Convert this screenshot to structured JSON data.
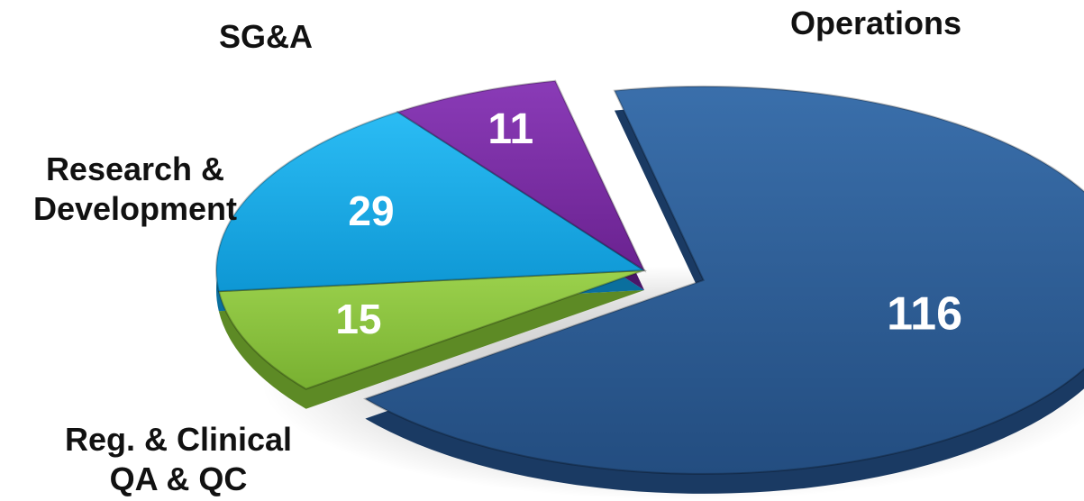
{
  "chart_data": {
    "type": "pie",
    "title": "",
    "categories": [
      "Operations",
      "Reg. & Clinical QA & QC",
      "Research & Development",
      "SG&A"
    ],
    "values": [
      116,
      15,
      29,
      11
    ],
    "slices": [
      {
        "label_lines": [
          "Operations"
        ],
        "value": 116,
        "color": "#2d5e96"
      },
      {
        "label_lines": [
          "Reg. & Clinical",
          "QA & QC"
        ],
        "value": 15,
        "color": "#8dc63f"
      },
      {
        "label_lines": [
          "Research &",
          "Development"
        ],
        "value": 29,
        "color": "#17a9e6"
      },
      {
        "label_lines": [
          "SG&A"
        ],
        "value": 11,
        "color": "#7e2ea8"
      }
    ],
    "legend": "none",
    "style": "3d exploded pie"
  }
}
